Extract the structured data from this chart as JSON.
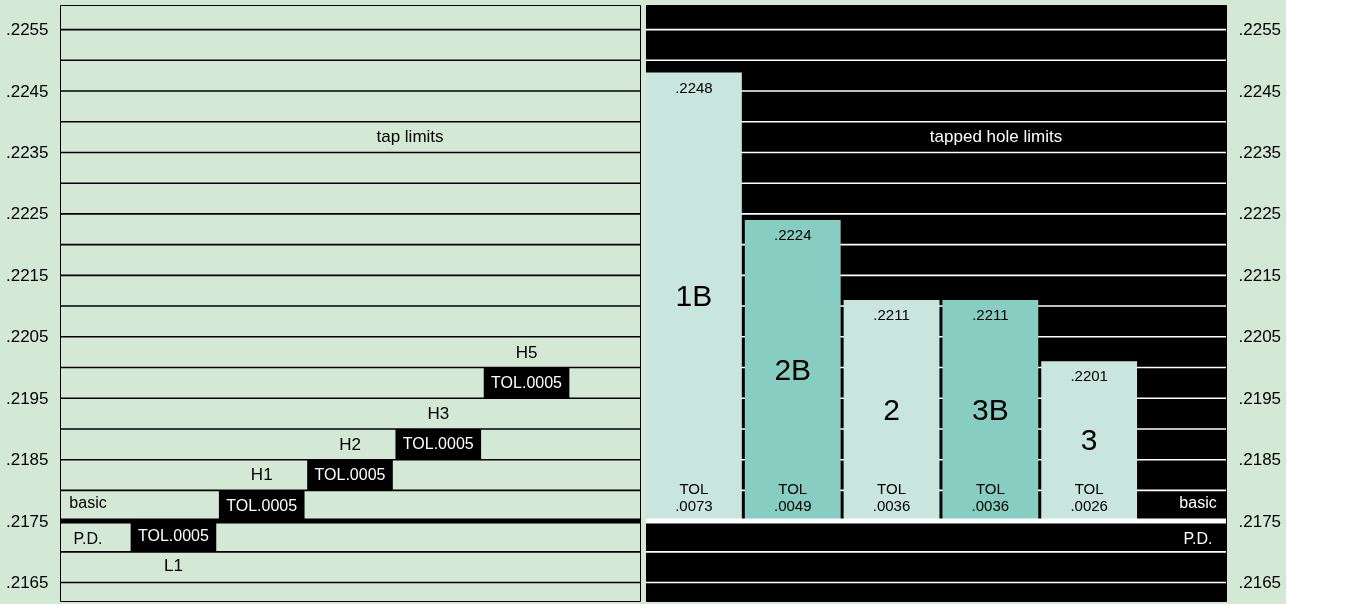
{
  "chart_data": [
    {
      "type": "bar",
      "categories": [
        "L1",
        "H1",
        "H2",
        "H3",
        "H5"
      ],
      "base": [
        0.217,
        0.2175,
        0.218,
        0.2185,
        0.2195
      ],
      "values": [
        0.0005,
        0.0005,
        0.0005,
        0.0005,
        0.0005
      ],
      "value_labels": [
        "TOL.0005",
        "TOL.0005",
        "TOL.0005",
        "TOL.0005",
        "TOL.0005"
      ],
      "color": "#000000",
      "ylim": [
        0.2162,
        0.2259
      ],
      "yticks": [
        {
          "value": 0.2165,
          "label": ".2165"
        },
        {
          "value": 0.217,
          "label": null
        },
        {
          "value": 0.2175,
          "label": ".2175"
        },
        {
          "value": 0.218,
          "label": null
        },
        {
          "value": 0.2185,
          "label": ".2185"
        },
        {
          "value": 0.219,
          "label": null
        },
        {
          "value": 0.2195,
          "label": ".2195"
        },
        {
          "value": 0.22,
          "label": null
        },
        {
          "value": 0.2205,
          "label": ".2205"
        },
        {
          "value": 0.221,
          "label": null
        },
        {
          "value": 0.2215,
          "label": ".2215"
        },
        {
          "value": 0.222,
          "label": null
        },
        {
          "value": 0.2225,
          "label": ".2225"
        },
        {
          "value": 0.223,
          "label": null
        },
        {
          "value": 0.2235,
          "label": ".2235"
        },
        {
          "value": 0.224,
          "label": null
        },
        {
          "value": 0.2245,
          "label": ".2245"
        },
        {
          "value": 0.225,
          "label": null
        },
        {
          "value": 0.2255,
          "label": ".2255"
        }
      ],
      "grid": "y",
      "annotations": [
        "tap limits"
      ],
      "ref_lines": [
        {
          "axis": "y",
          "value": 0.2175,
          "label": "basic P.D."
        }
      ]
    },
    {
      "type": "bar",
      "categories": [
        "1B",
        "2B",
        "2",
        "3B",
        "3"
      ],
      "base": [
        0.2175,
        0.2175,
        0.2175,
        0.2175,
        0.2175
      ],
      "values": [
        0.0073,
        0.0049,
        0.0036,
        0.0036,
        0.0026
      ],
      "value_labels": [
        "TOL .0073",
        "TOL .0049",
        "TOL .0036",
        "TOL .0036",
        "TOL .0026"
      ],
      "colors": [
        "#c8e5de",
        "#88cdc2",
        "#c8e5de",
        "#88cdc2",
        "#c8e5de"
      ],
      "ylim": [
        0.2162,
        0.2259
      ],
      "yticks": [
        {
          "value": 0.2165,
          "label": ".2165"
        },
        {
          "value": 0.217,
          "label": null
        },
        {
          "value": 0.2175,
          "label": ".2175"
        },
        {
          "value": 0.218,
          "label": null
        },
        {
          "value": 0.2185,
          "label": ".2185"
        },
        {
          "value": 0.219,
          "label": null
        },
        {
          "value": 0.2195,
          "label": ".2195"
        },
        {
          "value": 0.22,
          "label": null
        },
        {
          "value": 0.2205,
          "label": ".2205"
        },
        {
          "value": 0.221,
          "label": null
        },
        {
          "value": 0.2215,
          "label": ".2215"
        },
        {
          "value": 0.222,
          "label": null
        },
        {
          "value": 0.2225,
          "label": ".2225"
        },
        {
          "value": 0.223,
          "label": null
        },
        {
          "value": 0.2235,
          "label": ".2235"
        },
        {
          "value": 0.224,
          "label": null
        },
        {
          "value": 0.2245,
          "label": ".2245"
        },
        {
          "value": 0.225,
          "label": null
        },
        {
          "value": 0.2255,
          "label": ".2255"
        }
      ],
      "grid": "y",
      "annotations": [
        "tapped hole limits",
        {
          "text": ".2248",
          "x": "1B",
          "y": 0.2248
        },
        {
          "text": ".2224",
          "x": "2B",
          "y": 0.2224
        },
        {
          "text": ".2211",
          "x": "2",
          "y": 0.2211
        },
        {
          "text": ".2211",
          "x": "3B",
          "y": 0.2211
        },
        {
          "text": ".2201",
          "x": "3",
          "y": 0.2201
        }
      ],
      "ref_lines": [
        {
          "axis": "y",
          "value": 0.2175,
          "label": "basic P.D."
        }
      ]
    }
  ]
}
